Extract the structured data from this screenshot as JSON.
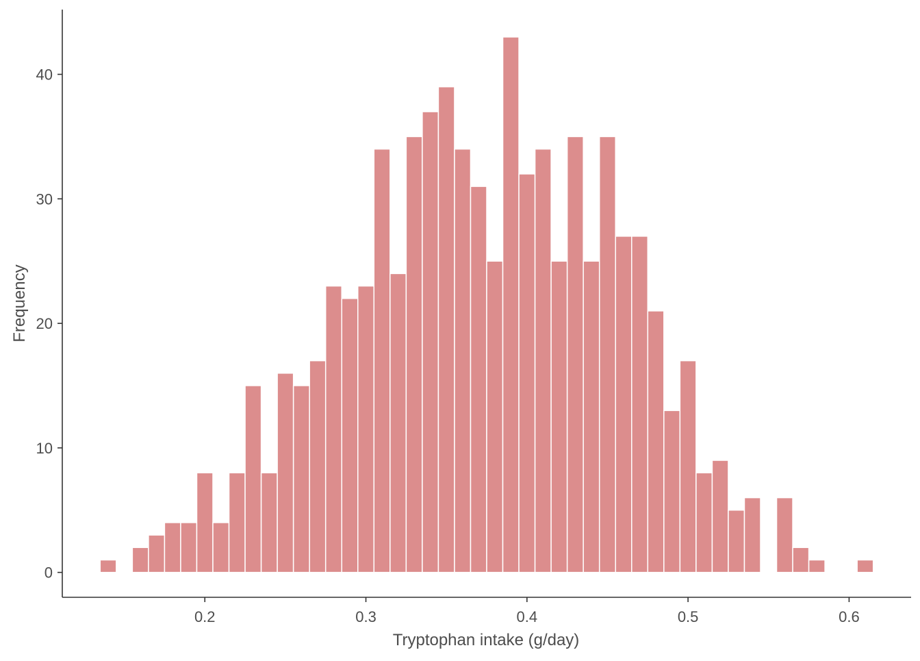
{
  "chart_data": {
    "type": "bar",
    "subtype": "histogram",
    "title": "",
    "xlabel": "Tryptophan intake (g/day)",
    "ylabel": "Frequency",
    "xlim": [
      0.1115,
      0.6385
    ],
    "ylim": [
      -2.0,
      45.2
    ],
    "x_ticks": [
      0.2,
      0.3,
      0.4,
      0.5,
      0.6
    ],
    "x_tick_labels": [
      "0.2",
      "0.3",
      "0.4",
      "0.5",
      "0.6"
    ],
    "y_ticks": [
      0,
      10,
      20,
      30,
      40
    ],
    "y_tick_labels": [
      "0",
      "10",
      "20",
      "30",
      "40"
    ],
    "bin_width": 0.01,
    "bin_centers": [
      0.14,
      0.15,
      0.16,
      0.17,
      0.18,
      0.19,
      0.2,
      0.21,
      0.22,
      0.23,
      0.24,
      0.25,
      0.26,
      0.27,
      0.28,
      0.29,
      0.3,
      0.31,
      0.32,
      0.33,
      0.34,
      0.35,
      0.36,
      0.37,
      0.38,
      0.39,
      0.4,
      0.41,
      0.42,
      0.43,
      0.44,
      0.45,
      0.46,
      0.47,
      0.48,
      0.49,
      0.5,
      0.51,
      0.52,
      0.53,
      0.54,
      0.55,
      0.56,
      0.57,
      0.58,
      0.59,
      0.6,
      0.61
    ],
    "values": [
      1,
      0,
      2,
      3,
      4,
      4,
      8,
      4,
      8,
      15,
      8,
      16,
      15,
      17,
      23,
      22,
      23,
      34,
      24,
      35,
      37,
      39,
      34,
      31,
      25,
      43,
      32,
      34,
      25,
      35,
      25,
      35,
      27,
      27,
      21,
      13,
      17,
      8,
      9,
      5,
      6,
      0,
      6,
      2,
      1,
      0,
      0,
      1
    ],
    "bar_color": "#dc8d8d",
    "bar_edge_color": "#ffffff",
    "grid": false,
    "legend": "none"
  }
}
